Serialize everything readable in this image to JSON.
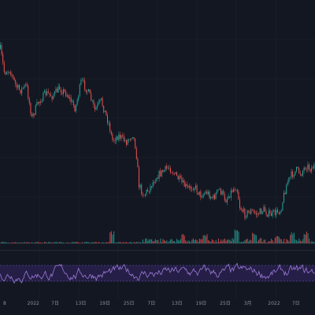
{
  "chart_data": {
    "type": "candlestick",
    "panels": [
      "price",
      "volume",
      "rsi"
    ],
    "grid": true,
    "legend": "none",
    "colors": {
      "background": "#131722",
      "grid": "#1e222d",
      "up": "#26a69a",
      "down": "#ef5350",
      "rsi_line": "#9c7bd8",
      "rsi_band": "#2a2150",
      "rsi_band_edge": "#6a5acd",
      "separator": "#2a2e39"
    },
    "x_ticks": [
      "8",
      "2022",
      "7日",
      "13日",
      "19日",
      "25日",
      "7日",
      "13日",
      "19日",
      "25日",
      "3月",
      "2022",
      "7日",
      "13日"
    ],
    "price_anchors": [
      [
        0,
        62
      ],
      [
        5,
        92
      ],
      [
        12,
        88
      ],
      [
        20,
        110
      ],
      [
        25,
        115
      ],
      [
        33,
        108
      ],
      [
        40,
        150
      ],
      [
        48,
        130
      ],
      [
        58,
        118
      ],
      [
        66,
        122
      ],
      [
        75,
        112
      ],
      [
        85,
        120
      ],
      [
        95,
        138
      ],
      [
        103,
        102
      ],
      [
        112,
        118
      ],
      [
        120,
        140
      ],
      [
        128,
        128
      ],
      [
        138,
        158
      ],
      [
        142,
        178
      ],
      [
        150,
        172
      ],
      [
        160,
        180
      ],
      [
        168,
        170
      ],
      [
        172,
        188
      ],
      [
        176,
        235
      ],
      [
        182,
        248
      ],
      [
        190,
        238
      ],
      [
        198,
        224
      ],
      [
        206,
        218
      ],
      [
        214,
        212
      ],
      [
        222,
        222
      ],
      [
        230,
        232
      ],
      [
        238,
        240
      ],
      [
        246,
        236
      ],
      [
        254,
        248
      ],
      [
        262,
        244
      ],
      [
        270,
        252
      ],
      [
        278,
        240
      ],
      [
        286,
        254
      ],
      [
        294,
        242
      ],
      [
        300,
        236
      ],
      [
        304,
        262
      ],
      [
        310,
        272
      ],
      [
        318,
        268
      ],
      [
        326,
        272
      ],
      [
        334,
        266
      ],
      [
        342,
        273
      ],
      [
        350,
        270
      ],
      [
        356,
        266
      ],
      [
        360,
        248
      ],
      [
        364,
        232
      ],
      [
        370,
        222
      ],
      [
        376,
        216
      ],
      [
        382,
        220
      ],
      [
        388,
        210
      ],
      [
        394,
        214
      ],
      [
        400,
        210
      ]
    ],
    "volume_spikes": [
      [
        142,
        16
      ],
      [
        232,
        12
      ],
      [
        260,
        14
      ],
      [
        300,
        18
      ],
      [
        322,
        14
      ],
      [
        352,
        12
      ],
      [
        370,
        14
      ],
      [
        388,
        16
      ]
    ],
    "rsi_levels": {
      "upper": 70,
      "lower": 30,
      "range": [
        0,
        100
      ]
    }
  }
}
